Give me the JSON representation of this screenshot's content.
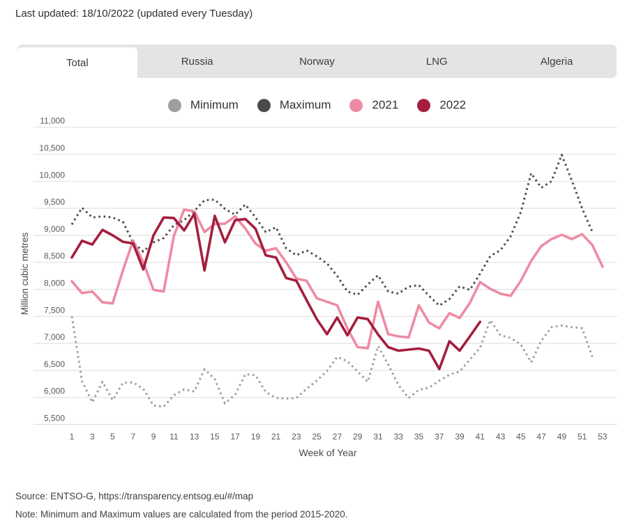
{
  "header": {
    "last_updated": "Last updated: 18/10/2022 (updated every Tuesday)"
  },
  "tabs": {
    "items": [
      {
        "label": "Total",
        "active": true
      },
      {
        "label": "Russia",
        "active": false
      },
      {
        "label": "Norway",
        "active": false
      },
      {
        "label": "LNG",
        "active": false
      },
      {
        "label": "Algeria",
        "active": false
      }
    ]
  },
  "footer": {
    "source": "Source: ENTSO-G,  https://transparency.entsog.eu/#/map",
    "note": "Note: Minimum and Maximum values are calculated from the period 2015-2020."
  },
  "colors": {
    "minimum": "#9e9e9e",
    "maximum": "#4a4a4a",
    "y2021": "#ee8ba4",
    "y2022": "#a41e3e",
    "grid": "#e3e3e3",
    "tab_bar_bg": "#e4e4e4",
    "tick_text": "#595959"
  },
  "chart_data": {
    "type": "line",
    "title": "",
    "xlabel": "Week of Year",
    "ylabel": "Million cubic metres",
    "x_range": [
      1,
      53
    ],
    "x_tick_labels": [
      1,
      3,
      5,
      7,
      9,
      11,
      13,
      15,
      17,
      19,
      21,
      23,
      25,
      27,
      29,
      31,
      33,
      35,
      37,
      39,
      41,
      43,
      45,
      47,
      49,
      51,
      53
    ],
    "ylim": [
      5500,
      11000
    ],
    "y_tick_step": 500,
    "grid": "horizontal",
    "legend_position": "top-center",
    "series": [
      {
        "name": "Minimum",
        "style": "dotted",
        "color": "#9e9e9e",
        "values": [
          7500,
          6300,
          5910,
          6290,
          5950,
          6270,
          6280,
          6160,
          5850,
          5830,
          6040,
          6150,
          6110,
          6520,
          6340,
          5890,
          6050,
          6430,
          6410,
          6100,
          5990,
          5980,
          5990,
          6160,
          6310,
          6490,
          6750,
          6670,
          6480,
          6290,
          6950,
          6610,
          6230,
          5990,
          6140,
          6180,
          6310,
          6420,
          6480,
          6700,
          6920,
          7430,
          7150,
          7100,
          6980,
          6650,
          7050,
          7300,
          7330,
          7300,
          7280,
          6750,
          null
        ]
      },
      {
        "name": "Maximum",
        "style": "dotted",
        "color": "#4a4a4a",
        "values": [
          9200,
          9510,
          9330,
          9350,
          9330,
          9250,
          8870,
          8700,
          8870,
          8950,
          9190,
          9280,
          9450,
          9650,
          9660,
          9490,
          9380,
          9570,
          9330,
          9060,
          9150,
          8760,
          8630,
          8720,
          8610,
          8480,
          8250,
          7960,
          7900,
          8090,
          8260,
          7960,
          7920,
          8050,
          8080,
          7880,
          7700,
          7820,
          8055,
          7990,
          8290,
          8615,
          8725,
          8985,
          9430,
          10150,
          9880,
          10000,
          10490,
          10010,
          9500,
          9060,
          null
        ]
      },
      {
        "name": "2021",
        "style": "solid",
        "color": "#ee8ba4",
        "values": [
          8150,
          7930,
          7960,
          7760,
          7740,
          8350,
          8900,
          8500,
          7990,
          7960,
          8990,
          9475,
          9445,
          9060,
          9210,
          9215,
          9350,
          9125,
          8845,
          8715,
          8760,
          8500,
          8200,
          8160,
          7835,
          7770,
          7705,
          7275,
          6930,
          6910,
          7770,
          7170,
          7130,
          7110,
          7705,
          7385,
          7280,
          7560,
          7470,
          7750,
          8135,
          8010,
          7920,
          7880,
          8160,
          8525,
          8800,
          8930,
          9010,
          8930,
          9020,
          8820,
          8420
        ]
      },
      {
        "name": "2022",
        "style": "solid",
        "color": "#a41e3e",
        "values": [
          8590,
          8900,
          8830,
          9100,
          9000,
          8880,
          8850,
          8370,
          9000,
          9330,
          9320,
          9090,
          9400,
          8350,
          9360,
          8870,
          9280,
          9300,
          9120,
          8630,
          8590,
          8210,
          8160,
          7800,
          7450,
          7170,
          7480,
          7150,
          7480,
          7450,
          7165,
          6930,
          6865,
          6885,
          6905,
          6865,
          6525,
          7040,
          6865,
          7130,
          7400,
          null,
          null,
          null,
          null,
          null,
          null,
          null,
          null,
          null,
          null,
          null,
          null
        ]
      }
    ]
  }
}
